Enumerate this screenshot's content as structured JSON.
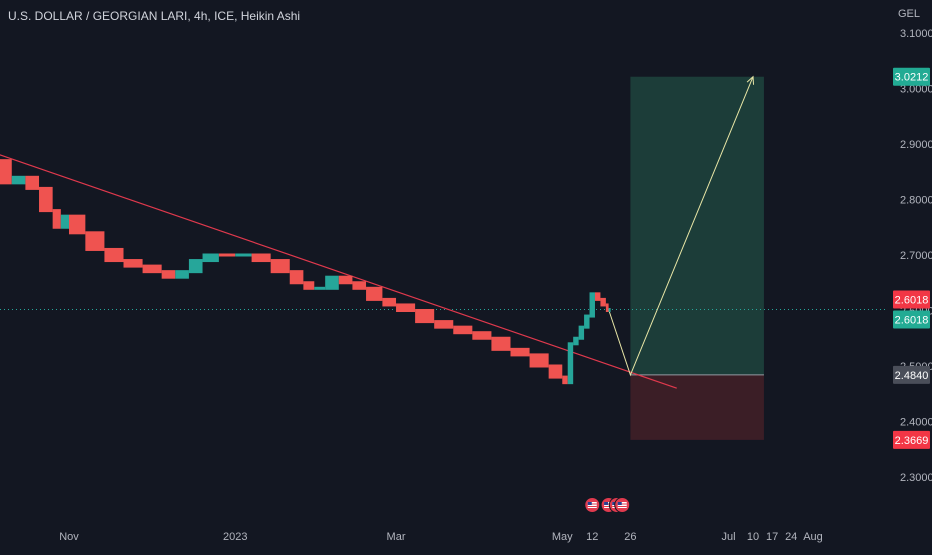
{
  "header": {
    "symbol_title": "U.S. DOLLAR / GEORGIAN LARI, 4h, ICE, Heikin Ashi",
    "currency": "GEL"
  },
  "colors": {
    "background": "#131722",
    "up": "#26a69a",
    "down": "#ef5350",
    "trendline": "#e0394d",
    "projection": "#e8e6a6",
    "profit_zone": "#1c3f3b",
    "loss_zone": "#3d1f27",
    "axis_text": "#b2b5be",
    "last_price_line": "#26a69a"
  },
  "chart_data": {
    "type": "candlestick",
    "title": "U.S. DOLLAR / GEORGIAN LARI, 4h, ICE, Heikin Ashi",
    "ylabel": "GEL",
    "y_scale": "linear",
    "ylim": [
      2.245,
      3.13
    ],
    "y_ticks": [
      "3.1000",
      "3.0000",
      "2.9000",
      "2.8000",
      "2.7000",
      "2.6000",
      "2.5000",
      "2.4000",
      "2.3000"
    ],
    "x_ticks": [
      "Nov",
      "2023",
      "Mar",
      "May",
      "12",
      "26",
      "Jul",
      "10",
      "17",
      "24",
      "Aug"
    ],
    "x_tick_dates": [
      "2022-11-01",
      "2023-01-01",
      "2023-03-01",
      "2023-05-01",
      "2023-05-12",
      "2023-05-26",
      "2023-07-01",
      "2023-07-10",
      "2023-07-17",
      "2023-07-24",
      "2023-08-01"
    ],
    "series": [
      {
        "style": "heikin-ashi",
        "points": [
          {
            "date": "2022-10-01",
            "value": 2.87,
            "dir": "down"
          },
          {
            "date": "2022-10-06",
            "value": 2.83,
            "dir": "down"
          },
          {
            "date": "2022-10-11",
            "value": 2.84,
            "dir": "up"
          },
          {
            "date": "2022-10-16",
            "value": 2.82,
            "dir": "down"
          },
          {
            "date": "2022-10-21",
            "value": 2.78,
            "dir": "down"
          },
          {
            "date": "2022-10-26",
            "value": 2.75,
            "dir": "down"
          },
          {
            "date": "2022-10-29",
            "value": 2.77,
            "dir": "up"
          },
          {
            "date": "2022-11-01",
            "value": 2.74,
            "dir": "down"
          },
          {
            "date": "2022-11-07",
            "value": 2.71,
            "dir": "down"
          },
          {
            "date": "2022-11-14",
            "value": 2.69,
            "dir": "down"
          },
          {
            "date": "2022-11-21",
            "value": 2.68,
            "dir": "down"
          },
          {
            "date": "2022-11-28",
            "value": 2.67,
            "dir": "down"
          },
          {
            "date": "2022-12-05",
            "value": 2.66,
            "dir": "down"
          },
          {
            "date": "2022-12-10",
            "value": 2.67,
            "dir": "up"
          },
          {
            "date": "2022-12-15",
            "value": 2.69,
            "dir": "up"
          },
          {
            "date": "2022-12-20",
            "value": 2.7,
            "dir": "up"
          },
          {
            "date": "2022-12-26",
            "value": 2.7,
            "dir": "down"
          },
          {
            "date": "2023-01-01",
            "value": 2.7,
            "dir": "up"
          },
          {
            "date": "2023-01-07",
            "value": 2.69,
            "dir": "down"
          },
          {
            "date": "2023-01-14",
            "value": 2.67,
            "dir": "down"
          },
          {
            "date": "2023-01-21",
            "value": 2.65,
            "dir": "down"
          },
          {
            "date": "2023-01-26",
            "value": 2.64,
            "dir": "down"
          },
          {
            "date": "2023-01-30",
            "value": 2.64,
            "dir": "up"
          },
          {
            "date": "2023-02-03",
            "value": 2.66,
            "dir": "up"
          },
          {
            "date": "2023-02-08",
            "value": 2.65,
            "dir": "down"
          },
          {
            "date": "2023-02-13",
            "value": 2.64,
            "dir": "down"
          },
          {
            "date": "2023-02-18",
            "value": 2.62,
            "dir": "down"
          },
          {
            "date": "2023-02-24",
            "value": 2.61,
            "dir": "down"
          },
          {
            "date": "2023-03-01",
            "value": 2.6,
            "dir": "down"
          },
          {
            "date": "2023-03-08",
            "value": 2.58,
            "dir": "down"
          },
          {
            "date": "2023-03-15",
            "value": 2.57,
            "dir": "down"
          },
          {
            "date": "2023-03-22",
            "value": 2.56,
            "dir": "down"
          },
          {
            "date": "2023-03-29",
            "value": 2.55,
            "dir": "down"
          },
          {
            "date": "2023-04-05",
            "value": 2.53,
            "dir": "down"
          },
          {
            "date": "2023-04-12",
            "value": 2.52,
            "dir": "down"
          },
          {
            "date": "2023-04-19",
            "value": 2.5,
            "dir": "down"
          },
          {
            "date": "2023-04-26",
            "value": 2.48,
            "dir": "down"
          },
          {
            "date": "2023-05-01",
            "value": 2.47,
            "dir": "down"
          },
          {
            "date": "2023-05-03",
            "value": 2.54,
            "dir": "up"
          },
          {
            "date": "2023-05-05",
            "value": 2.55,
            "dir": "up"
          },
          {
            "date": "2023-05-07",
            "value": 2.57,
            "dir": "up"
          },
          {
            "date": "2023-05-09",
            "value": 2.59,
            "dir": "up"
          },
          {
            "date": "2023-05-11",
            "value": 2.63,
            "dir": "up"
          },
          {
            "date": "2023-05-13",
            "value": 2.62,
            "dir": "down"
          },
          {
            "date": "2023-05-15",
            "value": 2.61,
            "dir": "down"
          },
          {
            "date": "2023-05-17",
            "value": 2.6,
            "dir": "down"
          },
          {
            "date": "2023-05-18",
            "value": 2.6018,
            "dir": "up"
          }
        ]
      }
    ],
    "trendline": {
      "from": {
        "date": "2022-10-01",
        "value": 2.89
      },
      "to": {
        "date": "2023-06-12",
        "value": 2.46
      }
    },
    "position_tool": {
      "entry": 2.484,
      "target": 3.0212,
      "stop": 2.3669,
      "start_date": "2023-05-26",
      "end_date": "2023-07-14"
    },
    "projection_path": [
      {
        "date": "2023-05-18",
        "value": 2.6018
      },
      {
        "date": "2023-05-26",
        "value": 2.484
      },
      {
        "date": "2023-07-10",
        "value": 3.0212
      }
    ],
    "last_price": 2.6018,
    "price_labels": [
      {
        "text": "3.0212",
        "value": 3.0212,
        "kind": "target"
      },
      {
        "text": "2.6018",
        "value": 2.6018,
        "kind": "last-down"
      },
      {
        "text": "2.6018",
        "value": 2.6018,
        "kind": "last-up"
      },
      {
        "text": "2.4840",
        "value": 2.484,
        "kind": "entry"
      },
      {
        "text": "2.3669",
        "value": 2.3669,
        "kind": "stop"
      }
    ],
    "events": [
      {
        "date": "2023-05-12"
      },
      {
        "date": "2023-05-18"
      },
      {
        "date": "2023-05-21"
      },
      {
        "date": "2023-05-23"
      }
    ],
    "grid": false
  }
}
